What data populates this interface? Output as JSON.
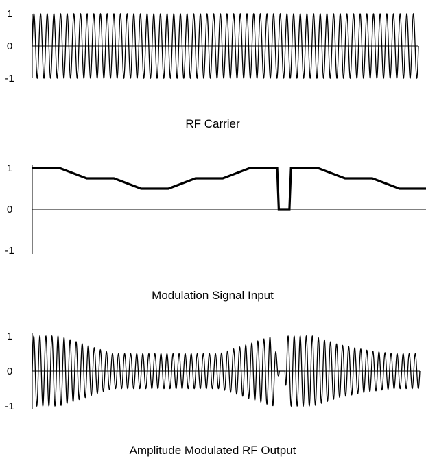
{
  "chart_data": [
    {
      "type": "line",
      "title": "RF Carrier",
      "ylim": [
        -1,
        1
      ],
      "yticks": [
        "1",
        "0",
        "-1"
      ],
      "zero_line": true,
      "grid": false,
      "legend": "none",
      "line_color": "#000000",
      "series": [
        {
          "kind": "sine carrier",
          "cycles": 58,
          "envelope_x": [
            0,
            1
          ],
          "envelope_y": [
            1,
            1
          ]
        }
      ]
    },
    {
      "type": "line",
      "title": "Modulation Signal Input",
      "ylim": [
        -1,
        1
      ],
      "yticks": [
        "1",
        "0",
        "-1"
      ],
      "zero_line": true,
      "grid": false,
      "legend": "none",
      "line_color": "#000000",
      "series": [
        {
          "kind": "modulation envelope",
          "x": [
            0,
            0.069,
            0.138,
            0.207,
            0.276,
            0.345,
            0.414,
            0.483,
            0.552,
            0.621,
            0.625,
            0.652,
            0.656,
            0.724,
            0.793,
            0.862,
            0.931,
            1.0
          ],
          "y": [
            1.0,
            1.0,
            0.75,
            0.75,
            0.5,
            0.5,
            0.75,
            0.75,
            1.0,
            1.0,
            0.0,
            0.0,
            1.0,
            1.0,
            0.75,
            0.75,
            0.5,
            0.5
          ]
        }
      ]
    },
    {
      "type": "line",
      "title": "Amplitude Modulated RF Output",
      "ylim": [
        -1,
        1
      ],
      "yticks": [
        "1",
        "0",
        "-1"
      ],
      "zero_line": true,
      "grid": false,
      "legend": "none",
      "line_color": "#000000",
      "series": [
        {
          "kind": "am carrier",
          "cycles": 64,
          "envelope_x": [
            0,
            0.069,
            0.207,
            0.276,
            0.345,
            0.414,
            0.448,
            0.483,
            0.621,
            0.638,
            0.652,
            0.656,
            0.69,
            0.724,
            0.793,
            0.862,
            0.931,
            1.0
          ],
          "envelope_y": [
            1.0,
            1.0,
            0.5,
            0.5,
            0.5,
            0.5,
            0.5,
            0.5,
            1.0,
            0.0,
            0.0,
            1.0,
            1.0,
            1.0,
            0.75,
            0.6,
            0.5,
            0.5
          ]
        }
      ]
    }
  ]
}
